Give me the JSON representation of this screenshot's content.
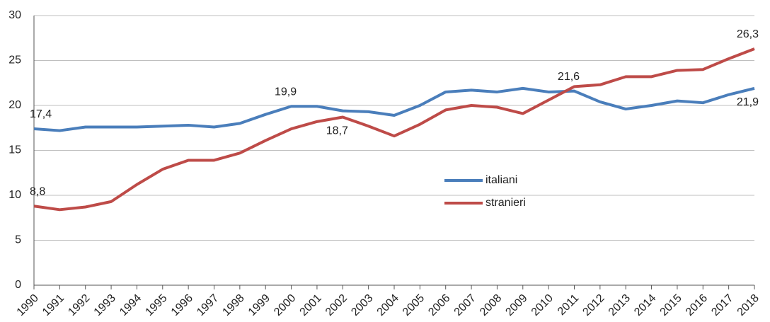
{
  "chart_data": {
    "type": "line",
    "categories": [
      "1990",
      "1991",
      "1992",
      "1993",
      "1994",
      "1995",
      "1996",
      "1997",
      "1998",
      "1999",
      "2000",
      "2001",
      "2002",
      "2003",
      "2004",
      "2005",
      "2006",
      "2007",
      "2008",
      "2009",
      "2010",
      "2011",
      "2012",
      "2013",
      "2014",
      "2015",
      "2016",
      "2017",
      "2018"
    ],
    "series": [
      {
        "name": "italiani",
        "color": "#4a7ebb",
        "values": [
          17.4,
          17.2,
          17.6,
          17.6,
          17.6,
          17.7,
          17.8,
          17.6,
          18.0,
          19.0,
          19.9,
          19.9,
          19.4,
          19.3,
          18.9,
          20.0,
          21.5,
          21.7,
          21.5,
          21.9,
          21.5,
          21.6,
          20.4,
          19.6,
          20.0,
          20.5,
          20.3,
          21.2,
          21.9
        ],
        "value_labels": [
          "17,4",
          null,
          null,
          null,
          null,
          null,
          null,
          null,
          null,
          null,
          "19,9",
          null,
          null,
          null,
          null,
          null,
          null,
          null,
          null,
          null,
          null,
          "21,6",
          null,
          null,
          null,
          null,
          null,
          null,
          "21,9"
        ]
      },
      {
        "name": "stranieri",
        "color": "#be4b48",
        "values": [
          8.8,
          8.4,
          8.7,
          9.3,
          11.2,
          12.9,
          13.9,
          13.9,
          14.7,
          16.1,
          17.4,
          18.2,
          18.7,
          17.7,
          16.6,
          17.9,
          19.5,
          20.0,
          19.8,
          19.1,
          20.6,
          22.1,
          22.3,
          23.2,
          23.2,
          23.9,
          24.0,
          25.2,
          26.3
        ],
        "value_labels": [
          "8,8",
          null,
          null,
          null,
          null,
          null,
          null,
          null,
          null,
          null,
          null,
          null,
          "18,7",
          null,
          null,
          null,
          null,
          null,
          null,
          null,
          null,
          null,
          null,
          null,
          null,
          null,
          null,
          null,
          "26,3"
        ]
      }
    ],
    "ylim": [
      0,
      30
    ],
    "yticks": [
      0,
      5,
      10,
      15,
      20,
      25,
      30
    ],
    "grid": true
  }
}
